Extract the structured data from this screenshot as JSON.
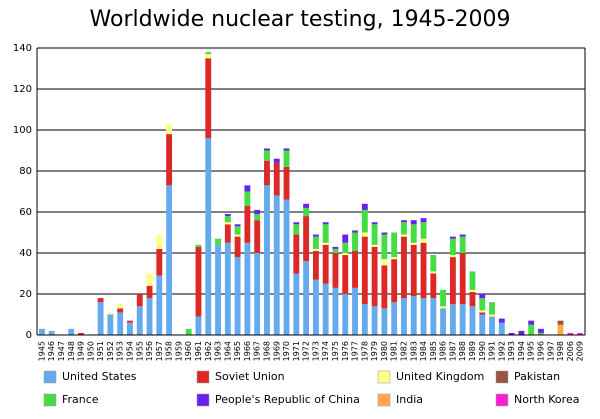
{
  "chart_data": {
    "type": "stacked_bar",
    "title": "Worldwide nuclear testing, 1945-2009",
    "categories": [
      "1945",
      "1946",
      "1947",
      "1948",
      "1949",
      "1950",
      "1951",
      "1952",
      "1953",
      "1954",
      "1955",
      "1956",
      "1957",
      "1958",
      "1959",
      "1960",
      "1961",
      "1962",
      "1963",
      "1964",
      "1965",
      "1966",
      "1967",
      "1968",
      "1969",
      "1970",
      "1971",
      "1972",
      "1973",
      "1974",
      "1975",
      "1976",
      "1977",
      "1978",
      "1979",
      "1980",
      "1981",
      "1982",
      "1983",
      "1984",
      "1985",
      "1986",
      "1987",
      "1988",
      "1989",
      "1990",
      "1991",
      "1992",
      "1993",
      "1994",
      "1995",
      "1996",
      "1997",
      "1998",
      "2006",
      "2009"
    ],
    "series": [
      {
        "name": "United States",
        "color": "#66aaee",
        "values": [
          3,
          2,
          0,
          3,
          0,
          0,
          16,
          10,
          11,
          6,
          14,
          18,
          29,
          73,
          0,
          0,
          9,
          96,
          44,
          45,
          38,
          45,
          40,
          73,
          68,
          66,
          30,
          36,
          27,
          25,
          23,
          20,
          23,
          15,
          14,
          13,
          16,
          18,
          19,
          18,
          18,
          13,
          15,
          15,
          14,
          10,
          9,
          6,
          0,
          0,
          0,
          0,
          0,
          0,
          0,
          0
        ]
      },
      {
        "name": "Soviet Union",
        "color": "#dd2828",
        "values": [
          0,
          0,
          0,
          0,
          1,
          0,
          2,
          0,
          2,
          1,
          6,
          6,
          13,
          25,
          0,
          0,
          34,
          39,
          0,
          9,
          10,
          18,
          16,
          12,
          16,
          16,
          19,
          22,
          14,
          19,
          17,
          19,
          18,
          33,
          29,
          21,
          21,
          30,
          25,
          27,
          12,
          0,
          23,
          25,
          7,
          1,
          0,
          0,
          0,
          0,
          0,
          0,
          0,
          0,
          0,
          0
        ]
      },
      {
        "name": "United Kingdom",
        "color": "#ffff88",
        "values": [
          0,
          0,
          0,
          0,
          0,
          0,
          0,
          1,
          2,
          0,
          0,
          6,
          7,
          5,
          0,
          0,
          0,
          2,
          0,
          1,
          1,
          0,
          0,
          0,
          0,
          0,
          0,
          0,
          1,
          1,
          0,
          1,
          0,
          2,
          1,
          3,
          1,
          1,
          1,
          2,
          1,
          1,
          1,
          0,
          1,
          1,
          1,
          0,
          0,
          0,
          0,
          0,
          0,
          0,
          0,
          0
        ]
      },
      {
        "name": "Pakistan",
        "color": "#995544",
        "values": [
          0,
          0,
          0,
          0,
          0,
          0,
          0,
          0,
          0,
          0,
          0,
          0,
          0,
          0,
          0,
          0,
          0,
          0,
          0,
          0,
          0,
          0,
          0,
          0,
          0,
          0,
          0,
          0,
          0,
          0,
          0,
          0,
          0,
          0,
          0,
          0,
          0,
          0,
          0,
          0,
          0,
          0,
          0,
          0,
          0,
          0,
          0,
          0,
          0,
          0,
          0,
          0,
          0,
          2,
          0,
          0
        ]
      },
      {
        "name": "France",
        "color": "#44dd44",
        "values": [
          0,
          0,
          0,
          0,
          0,
          0,
          0,
          0,
          0,
          0,
          0,
          0,
          0,
          0,
          0,
          3,
          1,
          1,
          3,
          3,
          4,
          7,
          3,
          5,
          0,
          8,
          5,
          4,
          6,
          9,
          2,
          5,
          9,
          11,
          10,
          12,
          12,
          6,
          9,
          8,
          8,
          8,
          8,
          8,
          9,
          6,
          6,
          0,
          0,
          0,
          5,
          1,
          0,
          0,
          0,
          0
        ]
      },
      {
        "name": "People's Republic of China",
        "color": "#6622ee",
        "values": [
          0,
          0,
          0,
          0,
          0,
          0,
          0,
          0,
          0,
          0,
          0,
          0,
          0,
          0,
          0,
          0,
          0,
          0,
          0,
          1,
          1,
          3,
          2,
          1,
          2,
          1,
          1,
          2,
          1,
          1,
          1,
          4,
          1,
          3,
          1,
          1,
          0,
          1,
          2,
          2,
          0,
          0,
          1,
          1,
          0,
          2,
          0,
          2,
          1,
          2,
          2,
          2,
          0,
          0,
          0,
          0
        ]
      },
      {
        "name": "India",
        "color": "#ffaa44",
        "values": [
          0,
          0,
          0,
          0,
          0,
          0,
          0,
          0,
          0,
          0,
          0,
          0,
          0,
          0,
          0,
          0,
          0,
          0,
          0,
          0,
          0,
          0,
          0,
          0,
          0,
          0,
          0,
          0,
          0,
          0,
          0,
          0,
          0,
          0,
          0,
          0,
          0,
          0,
          0,
          0,
          0,
          0,
          0,
          0,
          0,
          0,
          0,
          0,
          0,
          0,
          0,
          0,
          0,
          5,
          0,
          0
        ]
      },
      {
        "name": "North Korea",
        "color": "#ff22cc",
        "values": [
          0,
          0,
          0,
          0,
          0,
          0,
          0,
          0,
          0,
          0,
          0,
          0,
          0,
          0,
          0,
          0,
          0,
          0,
          0,
          0,
          0,
          0,
          0,
          0,
          0,
          0,
          0,
          0,
          0,
          0,
          0,
          0,
          0,
          0,
          0,
          0,
          0,
          0,
          0,
          0,
          0,
          0,
          0,
          0,
          0,
          0,
          0,
          0,
          0,
          0,
          0,
          0,
          0,
          0,
          1,
          1
        ]
      }
    ],
    "stack_order": [
      0,
      1,
      2,
      4,
      5,
      6,
      3,
      7
    ],
    "ylim": [
      0,
      140
    ],
    "yticks": [
      0,
      20,
      40,
      60,
      80,
      100,
      120,
      140
    ],
    "grid": true
  }
}
